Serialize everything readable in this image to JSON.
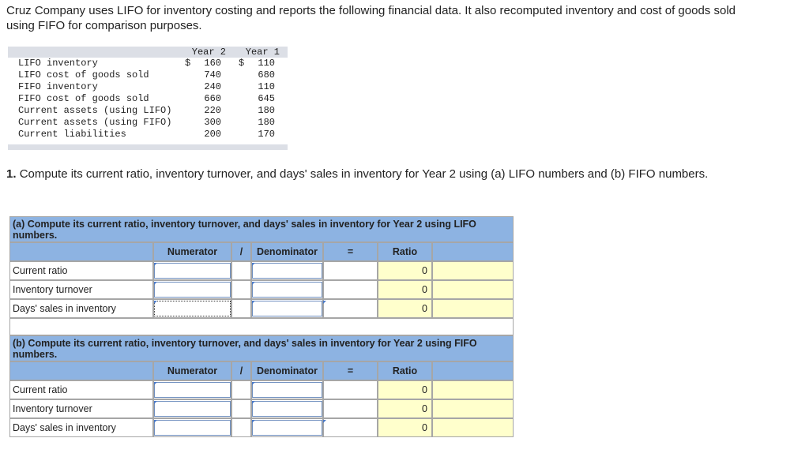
{
  "intro": "Cruz Company uses LIFO for inventory costing and reports the following financial data. It also recomputed inventory and cost of goods sold using FIFO for comparison purposes.",
  "data_table": {
    "headers": [
      "Year 2",
      "Year 1"
    ],
    "currency_symbol": "$",
    "rows": [
      {
        "label": "LIFO inventory",
        "values": [
          160,
          110
        ]
      },
      {
        "label": "LIFO cost of goods sold",
        "values": [
          740,
          680
        ]
      },
      {
        "label": "FIFO inventory",
        "values": [
          240,
          110
        ]
      },
      {
        "label": "FIFO cost of goods sold",
        "values": [
          660,
          645
        ]
      },
      {
        "label": "Current assets (using LIFO)",
        "values": [
          220,
          180
        ]
      },
      {
        "label": "Current assets (using FIFO)",
        "values": [
          300,
          180
        ]
      },
      {
        "label": "Current liabilities",
        "values": [
          200,
          170
        ]
      }
    ]
  },
  "question": {
    "number": "1.",
    "text": "Compute its current ratio, inventory turnover, and days' sales in inventory for Year 2 using (a) LIFO numbers and (b) FIFO numbers."
  },
  "parts": [
    {
      "heading": "(a) Compute its current ratio, inventory turnover, and days' sales in inventory for Year 2 using LIFO numbers.",
      "columns": [
        "Numerator",
        "/",
        "Denominator",
        "=",
        "Ratio"
      ],
      "rows": [
        {
          "label": "Current ratio",
          "ratio": 0
        },
        {
          "label": "Inventory turnover",
          "ratio": 0
        },
        {
          "label": "Days' sales in inventory",
          "ratio": 0
        }
      ]
    },
    {
      "heading": "(b) Compute its current ratio, inventory turnover, and days' sales in inventory for Year 2 using FIFO numbers.",
      "columns": [
        "Numerator",
        "/",
        "Denominator",
        "=",
        "Ratio"
      ],
      "rows": [
        {
          "label": "Current ratio",
          "ratio": 0
        },
        {
          "label": "Inventory turnover",
          "ratio": 0
        },
        {
          "label": "Days' sales in inventory",
          "ratio": 0
        }
      ]
    }
  ]
}
